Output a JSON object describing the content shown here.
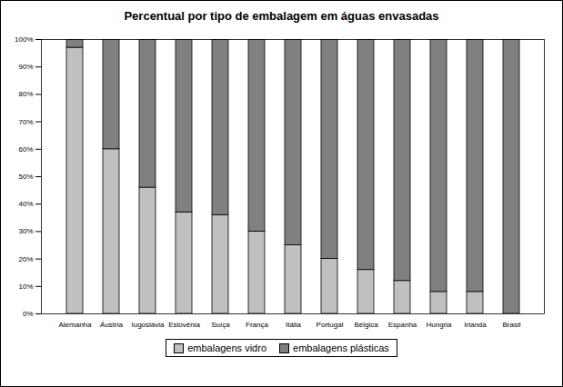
{
  "chart_data": {
    "type": "bar",
    "title": "Percentual por tipo de embalagem em águas envasadas",
    "categories": [
      "Alemanha",
      "Áustria",
      "Iugoslávia",
      "Eslovênia",
      "Suíça",
      "França",
      "Itália",
      "Portugal",
      "Bélgica",
      "Espanha",
      "Hungria",
      "Irlanda",
      "Brasil"
    ],
    "series": [
      {
        "name": "embalagens vidro",
        "color": "#c0c0c0",
        "values": [
          97,
          60,
          46,
          37,
          36,
          30,
          25,
          20,
          16,
          12,
          8,
          8,
          0
        ]
      },
      {
        "name": "embalagens plásticas",
        "color": "#808080",
        "values": [
          3,
          40,
          54,
          63,
          64,
          70,
          75,
          80,
          84,
          88,
          92,
          92,
          100
        ]
      }
    ],
    "stacked": true,
    "ylim": [
      0,
      100
    ],
    "yticks": [
      {
        "value": 0,
        "label": "0%"
      },
      {
        "value": 10,
        "label": "10%"
      },
      {
        "value": 20,
        "label": "20%"
      },
      {
        "value": 30,
        "label": "30%"
      },
      {
        "value": 40,
        "label": "40%"
      },
      {
        "value": 50,
        "label": "50%"
      },
      {
        "value": 60,
        "label": "60%"
      },
      {
        "value": 70,
        "label": "70%"
      },
      {
        "value": 80,
        "label": "80%"
      },
      {
        "value": 90,
        "label": "90%"
      },
      {
        "value": 100,
        "label": "100%"
      }
    ],
    "grid": false,
    "legend": "bottom"
  }
}
